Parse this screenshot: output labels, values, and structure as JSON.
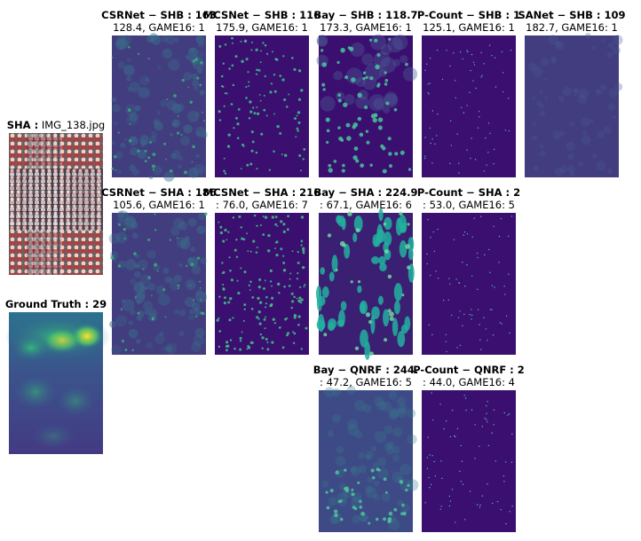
{
  "input": {
    "title_bold": "SHA :",
    "title_rest": " IMG_138.jpg"
  },
  "ground_truth": {
    "title_bold": "Ground Truth : 29"
  },
  "rows": {
    "shb": [
      {
        "title_bold": "CSRNet − SHB : 163",
        "subtitle": "128.4, GAME16: 1"
      },
      {
        "title_bold": "MCSNet − SHB : 116",
        "subtitle": "175.9, GAME16: 1"
      },
      {
        "title_bold": "Bay − SHB : 118.7",
        "subtitle": "173.3, GAME16: 1"
      },
      {
        "title_bold": "P-Count − SHB : 1",
        "subtitle": "125.1, GAME16: 1"
      },
      {
        "title_bold": "SANet − SHB : 109",
        "subtitle": "182.7, GAME16: 1"
      }
    ],
    "sha": [
      {
        "title_bold": "CSRNet − SHA : 186",
        "subtitle": "105.6, GAME16: 1"
      },
      {
        "title_bold": "MCSNet − SHA : 216",
        "subtitle": ": 76.0, GAME16: 7"
      },
      {
        "title_bold": "Bay − SHA : 224.9",
        "subtitle": ": 67.1, GAME16: 6"
      },
      {
        "title_bold": "P-Count − SHA : 2",
        "subtitle": ": 53.0, GAME16: 5"
      }
    ],
    "qnrf": [
      {
        "title_bold": "Bay − QNRF : 244.",
        "subtitle": ": 47.2, GAME16: 5"
      },
      {
        "title_bold": "P-Count − QNRF : 2",
        "subtitle": ": 44.0, GAME16: 4"
      }
    ]
  },
  "colors": {
    "viridis_dark": "#3b0f6f",
    "viridis_mid": "#3e4c8a",
    "viridis_teal": "#26a889",
    "viridis_yellow": "#fde725"
  }
}
